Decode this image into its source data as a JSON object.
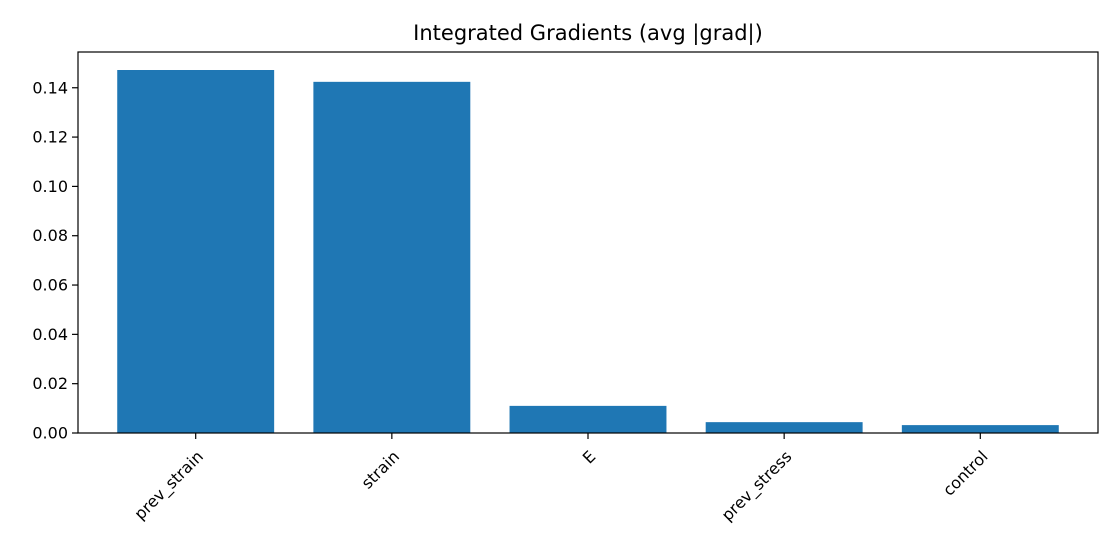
{
  "chart_data": {
    "type": "bar",
    "title": "Integrated Gradients (avg |grad|)",
    "xlabel": "",
    "ylabel": "",
    "categories": [
      "prev_strain",
      "strain",
      "E",
      "prev_stress",
      "control"
    ],
    "values": [
      0.1472,
      0.1424,
      0.011,
      0.0044,
      0.0032
    ],
    "ylim": [
      0,
      0.1545
    ],
    "yticks": [
      0.0,
      0.02,
      0.04,
      0.06,
      0.08,
      0.1,
      0.12,
      0.14
    ],
    "ytick_labels": [
      "0.00",
      "0.02",
      "0.04",
      "0.06",
      "0.08",
      "0.10",
      "0.12",
      "0.14"
    ],
    "bar_color": "#1f77b4",
    "grid": false,
    "legend": "none",
    "x_tick_rotation": -45
  }
}
